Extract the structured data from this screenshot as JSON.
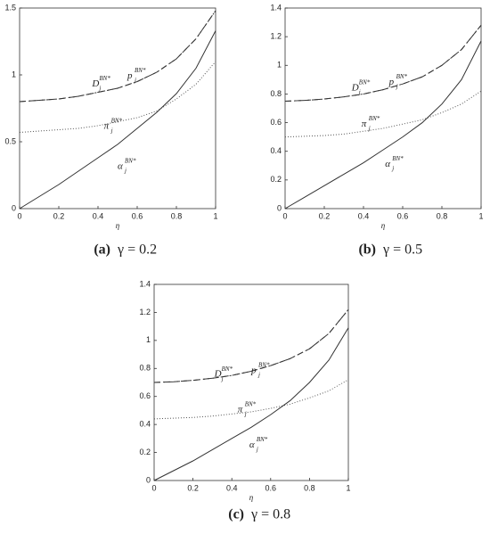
{
  "chart_data": [
    {
      "type": "line",
      "panel": "(a)",
      "caption": "γ = 0.2",
      "xlabel": "η",
      "x": [
        0,
        0.1,
        0.2,
        0.3,
        0.4,
        0.5,
        0.6,
        0.7,
        0.8,
        0.9,
        1
      ],
      "xlim": [
        0,
        1
      ],
      "xticks": [
        0,
        0.2,
        0.4,
        0.6,
        0.8,
        1
      ],
      "ylim": [
        0,
        1.5
      ],
      "yticks": [
        0,
        0.5,
        1,
        1.5
      ],
      "series": [
        {
          "name": "D",
          "subscript": "j",
          "superscript": "BN*",
          "color": "#333333",
          "dash": "7 3 2 3",
          "values": [
            0.8,
            0.81,
            0.82,
            0.84,
            0.87,
            0.9,
            0.95,
            1.02,
            1.12,
            1.27,
            1.48
          ]
        },
        {
          "name": "p",
          "subscript": "j",
          "superscript": "BN*",
          "color": "#333333",
          "dash": "7 4",
          "values": [
            0.8,
            0.81,
            0.82,
            0.84,
            0.87,
            0.9,
            0.95,
            1.02,
            1.12,
            1.27,
            1.48
          ]
        },
        {
          "name": "π",
          "subscript": "j",
          "superscript": "BN*",
          "color": "#555555",
          "dash": "1 2",
          "values": [
            0.57,
            0.58,
            0.59,
            0.6,
            0.62,
            0.65,
            0.68,
            0.73,
            0.82,
            0.93,
            1.1
          ]
        },
        {
          "name": "α",
          "subscript": "j",
          "superscript": "BN*",
          "color": "#333333",
          "dash": "none",
          "values": [
            0,
            0.09,
            0.18,
            0.28,
            0.38,
            0.48,
            0.6,
            0.72,
            0.86,
            1.05,
            1.33
          ]
        }
      ]
    },
    {
      "type": "line",
      "panel": "(b)",
      "caption": "γ = 0.5",
      "xlabel": "η",
      "x": [
        0,
        0.1,
        0.2,
        0.3,
        0.4,
        0.5,
        0.6,
        0.7,
        0.8,
        0.9,
        1
      ],
      "xlim": [
        0,
        1
      ],
      "xticks": [
        0,
        0.2,
        0.4,
        0.6,
        0.8,
        1
      ],
      "ylim": [
        0,
        1.4
      ],
      "yticks": [
        0,
        0.2,
        0.4,
        0.6,
        0.8,
        1,
        1.2,
        1.4
      ],
      "series": [
        {
          "name": "D",
          "subscript": "j",
          "superscript": "BN*",
          "color": "#333333",
          "dash": "7 3 2 3",
          "values": [
            0.75,
            0.755,
            0.765,
            0.78,
            0.8,
            0.83,
            0.87,
            0.92,
            1.0,
            1.11,
            1.28
          ]
        },
        {
          "name": "p",
          "subscript": "j",
          "superscript": "BN*",
          "color": "#333333",
          "dash": "7 4",
          "values": [
            0.75,
            0.755,
            0.765,
            0.78,
            0.8,
            0.83,
            0.87,
            0.92,
            1.0,
            1.11,
            1.28
          ]
        },
        {
          "name": "π",
          "subscript": "j",
          "superscript": "BN*",
          "color": "#555555",
          "dash": "1 2",
          "values": [
            0.5,
            0.505,
            0.51,
            0.52,
            0.54,
            0.56,
            0.59,
            0.62,
            0.67,
            0.73,
            0.82
          ]
        },
        {
          "name": "α",
          "subscript": "j",
          "superscript": "BN*",
          "color": "#333333",
          "dash": "none",
          "values": [
            0,
            0.08,
            0.16,
            0.24,
            0.32,
            0.41,
            0.5,
            0.6,
            0.73,
            0.9,
            1.17
          ]
        }
      ]
    },
    {
      "type": "line",
      "panel": "(c)",
      "caption": "γ = 0.8",
      "xlabel": "η",
      "x": [
        0,
        0.1,
        0.2,
        0.3,
        0.4,
        0.5,
        0.6,
        0.7,
        0.8,
        0.9,
        1
      ],
      "xlim": [
        0,
        1
      ],
      "xticks": [
        0,
        0.2,
        0.4,
        0.6,
        0.8,
        1
      ],
      "ylim": [
        0,
        1.4
      ],
      "yticks": [
        0,
        0.2,
        0.4,
        0.6,
        0.8,
        1,
        1.2,
        1.4
      ],
      "series": [
        {
          "name": "D",
          "subscript": "j",
          "superscript": "BN*",
          "color": "#333333",
          "dash": "7 3 2 3",
          "values": [
            0.7,
            0.705,
            0.715,
            0.73,
            0.75,
            0.78,
            0.82,
            0.87,
            0.94,
            1.05,
            1.22
          ]
        },
        {
          "name": "p",
          "subscript": "j",
          "superscript": "BN*",
          "color": "#333333",
          "dash": "7 4",
          "values": [
            0.7,
            0.705,
            0.715,
            0.73,
            0.75,
            0.78,
            0.82,
            0.87,
            0.94,
            1.05,
            1.22
          ]
        },
        {
          "name": "π",
          "subscript": "j",
          "superscript": "BN*",
          "color": "#555555",
          "dash": "1 2",
          "values": [
            0.44,
            0.445,
            0.45,
            0.46,
            0.475,
            0.49,
            0.515,
            0.545,
            0.59,
            0.64,
            0.72
          ]
        },
        {
          "name": "α",
          "subscript": "j",
          "superscript": "BN*",
          "color": "#333333",
          "dash": "none",
          "values": [
            0,
            0.07,
            0.14,
            0.22,
            0.3,
            0.38,
            0.47,
            0.57,
            0.7,
            0.86,
            1.09
          ]
        }
      ]
    }
  ]
}
